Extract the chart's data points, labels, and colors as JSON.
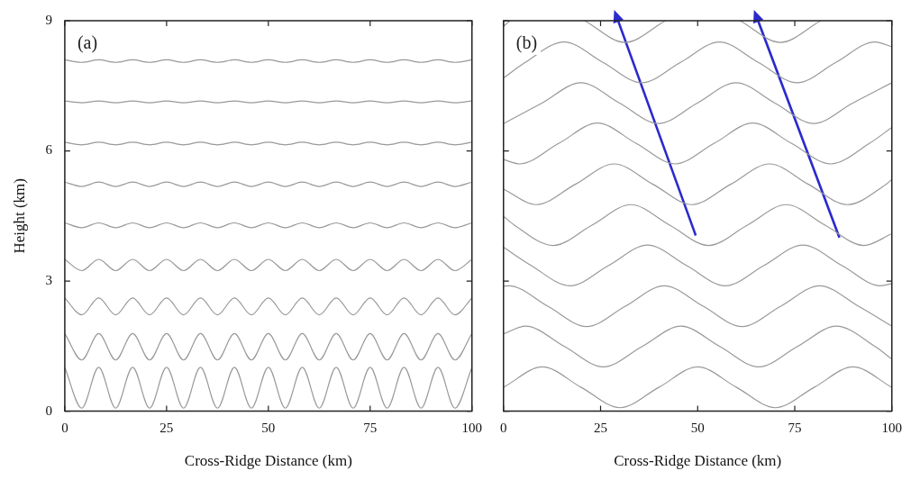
{
  "chart_data": [
    {
      "type": "line",
      "title": "(a)",
      "xlabel": "Cross-Ridge Distance (km)",
      "ylabel": "Height (km)",
      "x": [
        0,
        4.17,
        8.33,
        12.5,
        16.67,
        20.83,
        25,
        29.17,
        33.33,
        37.5,
        41.67,
        45.83,
        50,
        54.17,
        58.33,
        62.5,
        66.67,
        70.83,
        75,
        79.17,
        83.33,
        87.5,
        91.67,
        95.83,
        100
      ],
      "series": [
        {
          "color": "#999999",
          "values": [
            1.01,
            0.07,
            1.01,
            0.07,
            1.01,
            0.07,
            1.01,
            0.07,
            1.01,
            0.07,
            1.01,
            0.07,
            1.01,
            0.07,
            1.01,
            0.07,
            1.01,
            0.07,
            1.01,
            0.07,
            1.01,
            0.07,
            1.01,
            0.07,
            1.01
          ]
        },
        {
          "color": "#999999",
          "values": [
            1.79,
            1.18,
            1.79,
            1.18,
            1.79,
            1.18,
            1.79,
            1.18,
            1.79,
            1.18,
            1.79,
            1.18,
            1.79,
            1.18,
            1.79,
            1.18,
            1.79,
            1.18,
            1.79,
            1.18,
            1.79,
            1.18,
            1.79,
            1.18,
            1.79
          ]
        },
        {
          "color": "#999999",
          "values": [
            2.61,
            2.22,
            2.61,
            2.22,
            2.61,
            2.22,
            2.61,
            2.22,
            2.61,
            2.22,
            2.61,
            2.22,
            2.61,
            2.22,
            2.61,
            2.22,
            2.61,
            2.22,
            2.61,
            2.22,
            2.61,
            2.22,
            2.61,
            2.22,
            2.61
          ]
        },
        {
          "color": "#999999",
          "values": [
            3.5,
            3.24,
            3.5,
            3.24,
            3.5,
            3.24,
            3.5,
            3.24,
            3.5,
            3.24,
            3.5,
            3.24,
            3.5,
            3.24,
            3.5,
            3.24,
            3.5,
            3.24,
            3.5,
            3.24,
            3.5,
            3.24,
            3.5,
            3.24,
            3.5
          ]
        },
        {
          "color": "#999999",
          "values": [
            4.34,
            4.23,
            4.34,
            4.23,
            4.34,
            4.23,
            4.34,
            4.23,
            4.34,
            4.23,
            4.34,
            4.23,
            4.34,
            4.23,
            4.34,
            4.23,
            4.34,
            4.23,
            4.34,
            4.23,
            4.34,
            4.23,
            4.34,
            4.23,
            4.34
          ]
        },
        {
          "color": "#999999",
          "values": [
            5.28,
            5.18,
            5.28,
            5.18,
            5.28,
            5.18,
            5.28,
            5.18,
            5.28,
            5.18,
            5.28,
            5.18,
            5.28,
            5.18,
            5.28,
            5.18,
            5.28,
            5.18,
            5.28,
            5.18,
            5.28,
            5.18,
            5.28,
            5.18,
            5.28
          ]
        },
        {
          "color": "#999999",
          "values": [
            6.2,
            6.14,
            6.2,
            6.14,
            6.2,
            6.14,
            6.2,
            6.14,
            6.2,
            6.14,
            6.2,
            6.14,
            6.2,
            6.14,
            6.2,
            6.14,
            6.2,
            6.14,
            6.2,
            6.14,
            6.2,
            6.14,
            6.2,
            6.14,
            6.2
          ]
        },
        {
          "color": "#999999",
          "values": [
            7.15,
            7.11,
            7.15,
            7.11,
            7.15,
            7.11,
            7.15,
            7.11,
            7.15,
            7.11,
            7.15,
            7.11,
            7.15,
            7.11,
            7.15,
            7.11,
            7.15,
            7.11,
            7.15,
            7.11,
            7.15,
            7.11,
            7.15,
            7.11,
            7.15
          ]
        },
        {
          "color": "#999999",
          "values": [
            8.1,
            8.04,
            8.1,
            8.04,
            8.1,
            8.04,
            8.1,
            8.04,
            8.1,
            8.04,
            8.1,
            8.04,
            8.1,
            8.04,
            8.1,
            8.04,
            8.1,
            8.04,
            8.1,
            8.04,
            8.1,
            8.04,
            8.1,
            8.04,
            8.1
          ]
        }
      ],
      "xlim": [
        0,
        100
      ],
      "xticks": [
        0,
        25,
        50,
        75,
        100
      ],
      "ylim": [
        0,
        9
      ],
      "yticks": [
        0,
        3,
        6,
        9
      ],
      "grid": false,
      "legend": false
    },
    {
      "type": "line",
      "title": "(b)",
      "xlabel": "Cross-Ridge Distance (km)",
      "series": [
        {
          "color": "#999999",
          "x": [
            0,
            10,
            20,
            30,
            40,
            50,
            60,
            70,
            80,
            90,
            100
          ],
          "values": [
            0.55,
            1.02,
            0.55,
            0.08,
            0.55,
            1.02,
            0.55,
            0.08,
            0.55,
            1.02,
            0.55
          ]
        },
        {
          "color": "#999999",
          "x": [
            0,
            5.7,
            15.7,
            25.7,
            35.7,
            45.7,
            55.7,
            65.7,
            75.7,
            85.7,
            95.7,
            100
          ],
          "values": [
            1.78,
            1.96,
            1.49,
            1.02,
            1.49,
            1.96,
            1.49,
            1.02,
            1.49,
            1.96,
            1.49,
            1.2
          ]
        },
        {
          "color": "#999999",
          "x": [
            0,
            1.4,
            11.4,
            21.4,
            31.4,
            41.4,
            51.4,
            61.4,
            71.4,
            81.4,
            91.4,
            100
          ],
          "values": [
            2.88,
            2.89,
            2.42,
            1.95,
            2.42,
            2.89,
            2.42,
            1.95,
            2.42,
            2.89,
            2.42,
            1.96
          ]
        },
        {
          "color": "#999999",
          "x": [
            0,
            7.1,
            17.1,
            27.1,
            37.1,
            47.1,
            57.1,
            67.1,
            77.1,
            87.1,
            97.1,
            100
          ],
          "values": [
            3.78,
            3.36,
            2.89,
            3.36,
            3.83,
            3.36,
            2.89,
            3.36,
            3.83,
            3.36,
            2.89,
            2.94
          ]
        },
        {
          "color": "#999999",
          "x": [
            0,
            2.8,
            12.8,
            22.8,
            32.8,
            42.8,
            52.8,
            62.8,
            72.8,
            82.8,
            92.8,
            100
          ],
          "values": [
            4.49,
            4.29,
            3.82,
            4.29,
            4.76,
            4.29,
            3.82,
            4.29,
            4.76,
            4.29,
            3.82,
            4.09
          ]
        },
        {
          "color": "#999999",
          "x": [
            0,
            8.5,
            18.5,
            28.5,
            38.5,
            48.5,
            58.5,
            68.5,
            78.5,
            88.5,
            98.5,
            100
          ],
          "values": [
            5.12,
            4.76,
            5.23,
            5.7,
            5.23,
            4.76,
            5.23,
            5.7,
            5.23,
            4.76,
            5.23,
            5.34
          ]
        },
        {
          "color": "#999999",
          "x": [
            0,
            4.2,
            14.2,
            24.2,
            34.2,
            44.2,
            54.2,
            64.2,
            74.2,
            84.2,
            94.2,
            100
          ],
          "values": [
            5.8,
            5.7,
            6.17,
            6.64,
            6.17,
            5.7,
            6.17,
            6.64,
            6.17,
            5.7,
            6.17,
            6.54
          ]
        },
        {
          "color": "#999999",
          "x": [
            0,
            9.9,
            19.9,
            29.9,
            39.9,
            49.9,
            59.9,
            69.9,
            79.9,
            89.9,
            100
          ],
          "values": [
            6.63,
            7.1,
            7.57,
            7.1,
            6.63,
            7.1,
            7.57,
            7.1,
            6.63,
            7.1,
            7.57
          ]
        },
        {
          "color": "#999999",
          "x": [
            0,
            5.6,
            15.6,
            25.6,
            35.6,
            45.6,
            55.6,
            65.6,
            75.6,
            85.6,
            95.6,
            100
          ],
          "values": [
            7.68,
            8.04,
            8.51,
            8.04,
            7.57,
            8.04,
            8.51,
            8.04,
            7.57,
            8.04,
            8.51,
            8.4
          ]
        },
        {
          "color": "#999999",
          "x": [
            0,
            1.7,
            10,
            20.9,
            31.3,
            41.7,
            50,
            60.9,
            71.3,
            81.7
          ],
          "values": [
            8.87,
            9,
            null,
            9,
            8.5,
            9,
            null,
            9,
            8.5,
            9
          ]
        }
      ],
      "xlim": [
        0,
        100
      ],
      "xticks": [
        0,
        25,
        50,
        75,
        100
      ],
      "ylim": [
        0,
        9
      ],
      "yticks": [
        0,
        3,
        6,
        9
      ],
      "grid": false,
      "legend": false,
      "tick_labels": "x"
    }
  ]
}
